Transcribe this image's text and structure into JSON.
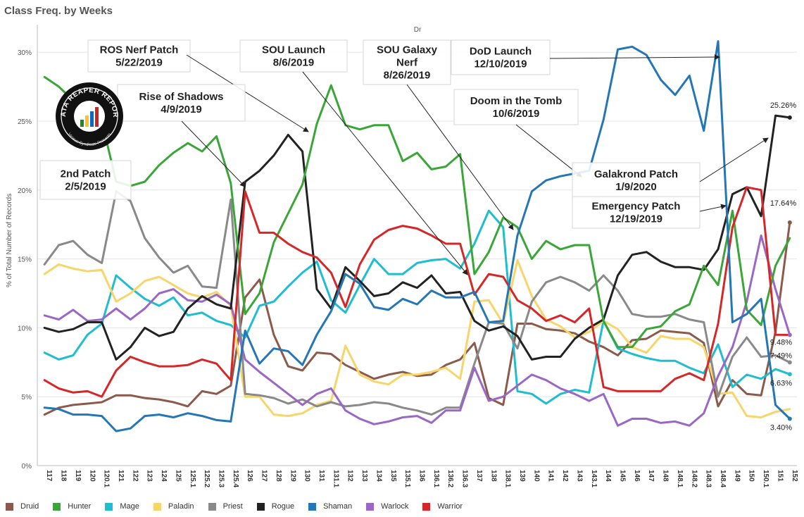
{
  "title": "Class Freq. by Weeks",
  "chart_data": {
    "type": "line",
    "title": "Class Freq. by Weeks",
    "subtitle": "Dr",
    "xlabel": "",
    "ylabel": "% of Total Number of Records",
    "ylim": [
      0,
      32
    ],
    "yticks": [
      "0%",
      "5%",
      "10%",
      "15%",
      "20%",
      "25%",
      "30%"
    ],
    "grid": true,
    "legend_position": "bottom",
    "categories": [
      "117",
      "118",
      "119",
      "120",
      "120.1",
      "121",
      "122",
      "123",
      "124",
      "125",
      "125.1",
      "125.2",
      "125.3",
      "125.4",
      "126",
      "127",
      "128",
      "129",
      "130",
      "131",
      "131.1",
      "132",
      "133",
      "134",
      "135",
      "135.1",
      "136",
      "136.1",
      "136.2",
      "136.3",
      "137",
      "138",
      "138.1",
      "139",
      "140",
      "141",
      "142",
      "143",
      "143.1",
      "144",
      "145",
      "146",
      "147",
      "148",
      "148.1",
      "148.2",
      "148.3",
      "148.4",
      "149",
      "150",
      "150.1",
      "151",
      "152"
    ],
    "series": [
      {
        "name": "Druid",
        "color": "#8b5a4a",
        "values": [
          3.7,
          4.2,
          4.4,
          4.5,
          4.6,
          5.1,
          5.1,
          4.9,
          4.8,
          4.6,
          4.3,
          5.4,
          5.2,
          5.8,
          12.2,
          13.5,
          9.5,
          7.2,
          6.9,
          8.2,
          8.1,
          7.3,
          6.8,
          6.3,
          6.6,
          6.8,
          6.5,
          6.6,
          7.3,
          7.7,
          8.9,
          4.9,
          4.4,
          10.3,
          10.3,
          9.9,
          9.8,
          9.6,
          9.0,
          8.6,
          8.0,
          9.1,
          9.2,
          9.8,
          9.7,
          9.6,
          8.9,
          4.3,
          6.2,
          5.2,
          5.1,
          9.7,
          17.64
        ],
        "end_label": "17.64%"
      },
      {
        "name": "Hunter",
        "color": "#3aa637",
        "values": [
          28.2,
          27.5,
          26.5,
          26.0,
          25.0,
          20.6,
          20.3,
          20.6,
          21.8,
          22.7,
          23.4,
          22.8,
          23.9,
          20.5,
          11.0,
          12.5,
          16.2,
          18.3,
          20.4,
          24.8,
          27.6,
          24.7,
          24.4,
          24.7,
          24.7,
          22.1,
          22.7,
          21.5,
          21.7,
          22.6,
          13.9,
          15.5,
          18.0,
          17.3,
          15.0,
          16.3,
          15.7,
          16.0,
          16.0,
          10.5,
          8.6,
          8.6,
          9.9,
          10.1,
          11.2,
          11.7,
          14.5,
          13.1,
          18.5,
          11.3,
          10.2,
          14.5,
          16.5
        ],
        "end_label": ""
      },
      {
        "name": "Mage",
        "color": "#1fbdd0",
        "values": [
          8.2,
          7.7,
          8.0,
          9.5,
          10.3,
          13.8,
          12.9,
          12.1,
          11.6,
          12.2,
          10.9,
          11.1,
          10.5,
          10.2,
          9.3,
          11.6,
          11.9,
          13.0,
          14.0,
          14.8,
          12.0,
          11.1,
          13.1,
          15.0,
          13.9,
          13.9,
          14.7,
          14.9,
          15.0,
          14.3,
          16.1,
          18.5,
          17.3,
          5.4,
          5.2,
          4.5,
          5.2,
          5.5,
          5.3,
          10.5,
          8.5,
          8.1,
          7.8,
          7.6,
          7.6,
          7.1,
          6.7,
          8.8,
          5.7,
          6.6,
          6.3,
          7.0,
          6.63
        ],
        "end_label": "6.63%"
      },
      {
        "name": "Paladin",
        "color": "#f7d56a",
        "values": [
          13.9,
          14.6,
          14.3,
          14.1,
          14.2,
          11.9,
          12.5,
          13.4,
          13.7,
          13.1,
          12.5,
          12.2,
          12.6,
          11.6,
          5.0,
          5.0,
          3.7,
          3.6,
          3.8,
          4.4,
          4.7,
          8.7,
          6.6,
          6.1,
          5.9,
          6.6,
          6.6,
          6.8,
          7.1,
          6.3,
          11.9,
          12.0,
          10.3,
          14.9,
          12.3,
          10.6,
          10.1,
          9.3,
          9.7,
          10.5,
          9.9,
          8.6,
          8.2,
          9.4,
          9.2,
          9.2,
          8.6,
          5.2,
          5.3,
          3.6,
          3.5,
          3.9,
          4.1
        ],
        "end_label": ""
      },
      {
        "name": "Priest",
        "color": "#898989",
        "values": [
          14.6,
          16.0,
          16.3,
          15.3,
          14.7,
          19.9,
          19.2,
          16.5,
          15.1,
          14.0,
          14.5,
          13.0,
          12.9,
          19.3,
          5.2,
          5.1,
          4.9,
          4.5,
          4.8,
          4.3,
          4.6,
          4.3,
          4.4,
          4.6,
          4.5,
          4.2,
          4.0,
          3.7,
          4.2,
          4.2,
          7.4,
          10.4,
          10.3,
          8.5,
          11.9,
          13.3,
          13.7,
          13.3,
          12.7,
          13.8,
          12.7,
          11.0,
          10.8,
          10.8,
          11.0,
          10.6,
          10.4,
          5.0,
          7.9,
          9.3,
          7.9,
          8.0,
          7.49
        ],
        "end_label": "7.49%"
      },
      {
        "name": "Rogue",
        "color": "#222222",
        "values": [
          10.0,
          9.7,
          9.9,
          10.4,
          10.4,
          7.7,
          8.6,
          10.0,
          9.4,
          9.7,
          11.4,
          12.3,
          11.7,
          11.4,
          20.6,
          21.4,
          22.5,
          24.0,
          22.8,
          12.8,
          11.4,
          14.4,
          13.4,
          12.3,
          12.5,
          13.3,
          12.9,
          13.8,
          12.5,
          12.6,
          10.5,
          9.8,
          10.1,
          9.4,
          7.7,
          7.9,
          7.9,
          9.2,
          10.0,
          10.6,
          13.8,
          15.3,
          15.5,
          14.8,
          14.4,
          14.4,
          14.2,
          15.7,
          19.7,
          20.2,
          18.1,
          25.4,
          25.26
        ],
        "end_label": "25.26%"
      },
      {
        "name": "Shaman",
        "color": "#2476b4",
        "values": [
          4.2,
          4.1,
          3.7,
          3.7,
          3.6,
          2.5,
          2.7,
          3.6,
          3.7,
          3.5,
          3.8,
          3.6,
          3.3,
          3.2,
          9.8,
          7.4,
          8.5,
          8.3,
          7.3,
          9.5,
          11.2,
          13.9,
          13.2,
          11.5,
          11.3,
          12.1,
          11.7,
          12.7,
          12.2,
          12.2,
          12.6,
          10.4,
          10.5,
          16.7,
          19.9,
          20.7,
          21.0,
          21.2,
          21.4,
          25.1,
          30.2,
          30.4,
          29.8,
          28.0,
          26.9,
          28.3,
          24.3,
          30.8,
          10.4,
          11.0,
          12.1,
          4.4,
          3.4
        ],
        "end_label": "3.40%"
      },
      {
        "name": "Warlock",
        "color": "#9a67c4",
        "values": [
          10.9,
          10.6,
          11.3,
          10.5,
          10.6,
          11.4,
          10.6,
          11.4,
          12.5,
          12.8,
          12.0,
          11.9,
          12.4,
          11.7,
          7.7,
          6.8,
          6.0,
          5.2,
          4.4,
          5.2,
          5.6,
          4.0,
          3.4,
          3.0,
          3.2,
          3.5,
          3.6,
          3.1,
          4.0,
          4.0,
          7.1,
          4.7,
          5.0,
          5.8,
          6.6,
          6.2,
          5.6,
          5.2,
          4.7,
          5.2,
          2.9,
          3.4,
          3.4,
          3.1,
          3.2,
          2.9,
          3.8,
          6.5,
          8.6,
          11.9,
          16.7,
          12.8,
          9.48
        ],
        "end_label": "9.48%"
      },
      {
        "name": "Warrior",
        "color": "#d62728",
        "values": [
          6.2,
          5.6,
          5.3,
          5.4,
          5.0,
          6.9,
          7.9,
          7.5,
          7.2,
          7.2,
          7.3,
          7.7,
          7.4,
          6.2,
          19.9,
          16.9,
          16.9,
          16.1,
          15.5,
          15.1,
          14.0,
          11.5,
          14.6,
          16.4,
          17.1,
          17.4,
          17.2,
          16.7,
          16.1,
          16.1,
          12.4,
          13.9,
          13.7,
          12.0,
          11.4,
          10.5,
          10.9,
          10.4,
          11.4,
          5.7,
          5.4,
          5.4,
          5.4,
          5.4,
          6.3,
          6.7,
          6.2,
          10.3,
          17.3,
          20.2,
          20.0,
          9.5,
          9.48
        ],
        "end_label": ""
      }
    ]
  },
  "annotations": [
    {
      "line1": "ROS Nerf Patch",
      "line2": "5/22/2019"
    },
    {
      "line1": "Rise of Shadows",
      "line2": "4/9/2019"
    },
    {
      "line1": "2nd Patch",
      "line2": "2/5/2019"
    },
    {
      "line1": "SOU Launch",
      "line2": "8/6/2019"
    },
    {
      "line1": "SOU Galaxy",
      "line2": "Nerf",
      "line3": "8/26/2019"
    },
    {
      "line1": "DoD Launch",
      "line2": "12/10/2019"
    },
    {
      "line1": "Doom in the Tomb",
      "line2": "10/6/2019"
    },
    {
      "line1": "Galakrond Patch",
      "line2": "1/9/2020"
    },
    {
      "line1": "Emergency Patch",
      "line2": "12/19/2019"
    }
  ],
  "logo": {
    "text": "DATA REAPER REPORT",
    "subtext": "Vicious Syndicate Presents"
  }
}
